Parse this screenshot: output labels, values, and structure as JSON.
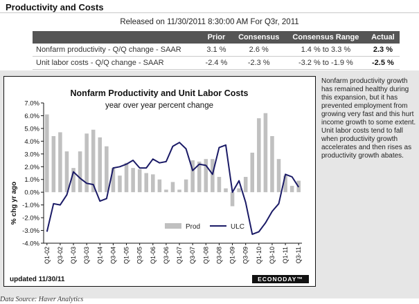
{
  "page": {
    "title": "Productivity and Costs",
    "release_line": "Released on 11/30/2011 8:30:00 AM For Q3r, 2011"
  },
  "table": {
    "headers": [
      "",
      "Prior",
      "Consensus",
      "Consensus Range",
      "Actual"
    ],
    "rows": [
      {
        "name": "Nonfarm productivity - Q/Q change - SAAR",
        "prior": "3.1 %",
        "consensus": "2.6 %",
        "range": "1.4 % to 3.3 %",
        "actual": "2.3 %"
      },
      {
        "name": "Unit labor costs - Q/Q change - SAAR",
        "prior": "-2.4 %",
        "consensus": "-2.3 %",
        "range": "-3.2 % to -1.9 %",
        "actual": "-2.5 %"
      }
    ]
  },
  "note": "Nonfarm productivity growth has remained healthy during this expansion, but it has prevented employment from growing very fast and this hurt income growth to some extent. Unit labor costs tend to fall when productivity growth accelerates and then rises as productivity growth abates.",
  "source": "Data Source: Haver Analytics",
  "chart_data": {
    "type": "bar",
    "title": "Nonfarm Productivity and Unit Labor Costs",
    "subtitle": "year over year percent change",
    "ylabel": "% chg yr ago",
    "ylim": [
      -4.0,
      7.0
    ],
    "yticks": [
      "7.0%",
      "6.0%",
      "5.0%",
      "4.0%",
      "3.0%",
      "2.0%",
      "1.0%",
      "0.0%",
      "-1.0%",
      "-2.0%",
      "-3.0%",
      "-4.0%"
    ],
    "categories": [
      "Q1-02",
      "Q2-02",
      "Q3-02",
      "Q4-02",
      "Q1-03",
      "Q2-03",
      "Q3-03",
      "Q4-03",
      "Q1-04",
      "Q2-04",
      "Q3-04",
      "Q4-04",
      "Q1-05",
      "Q2-05",
      "Q3-05",
      "Q4-05",
      "Q1-06",
      "Q2-06",
      "Q3-06",
      "Q4-06",
      "Q1-07",
      "Q2-07",
      "Q3-07",
      "Q4-07",
      "Q1-08",
      "Q2-08",
      "Q3-08",
      "Q4-08",
      "Q1-09",
      "Q2-09",
      "Q3-09",
      "Q4-09",
      "Q1-10",
      "Q2-10",
      "Q3-10",
      "Q4-10",
      "Q1-11",
      "Q2-11",
      "Q3-11"
    ],
    "xtick_labels": [
      "Q1-02",
      "Q3-02",
      "Q1-03",
      "Q3-03",
      "Q1-04",
      "Q3-04",
      "Q1-05",
      "Q3-05",
      "Q1-06",
      "Q3-06",
      "Q1-07",
      "Q3-07",
      "Q1-08",
      "Q3-08",
      "Q1-09",
      "Q3-09",
      "Q1-10",
      "Q3-10",
      "Q1-11",
      "Q3-11"
    ],
    "series": [
      {
        "name": "Prod",
        "type": "bar",
        "color": "#c0c0c0",
        "values": [
          6.1,
          4.4,
          4.7,
          3.2,
          1.9,
          3.2,
          4.6,
          4.9,
          4.3,
          3.6,
          1.9,
          1.3,
          2.3,
          1.9,
          1.8,
          1.5,
          1.4,
          1.0,
          0.2,
          0.8,
          0.2,
          1.0,
          2.5,
          2.4,
          2.6,
          2.6,
          1.2,
          0.3,
          -1.1,
          0.3,
          1.2,
          3.1,
          5.8,
          6.2,
          4.4,
          2.6,
          1.3,
          0.5,
          0.9
        ]
      },
      {
        "name": "ULC",
        "type": "line",
        "color": "#1a1a66",
        "values": [
          -3.1,
          -0.9,
          -1.0,
          -0.2,
          1.6,
          1.1,
          0.7,
          0.6,
          -0.7,
          -0.5,
          1.9,
          2.0,
          2.2,
          2.5,
          1.9,
          1.9,
          2.6,
          2.3,
          2.4,
          3.6,
          3.9,
          3.4,
          1.7,
          2.2,
          2.1,
          1.4,
          3.5,
          3.7,
          0.0,
          0.9,
          -0.8,
          -3.3,
          -3.1,
          -2.4,
          -1.5,
          -0.9,
          1.4,
          1.2,
          0.4
        ]
      }
    ],
    "legend_position": "bottom",
    "footer_left": "updated 11/30/11",
    "brand": "ECONODAY™",
    "grid": false
  }
}
